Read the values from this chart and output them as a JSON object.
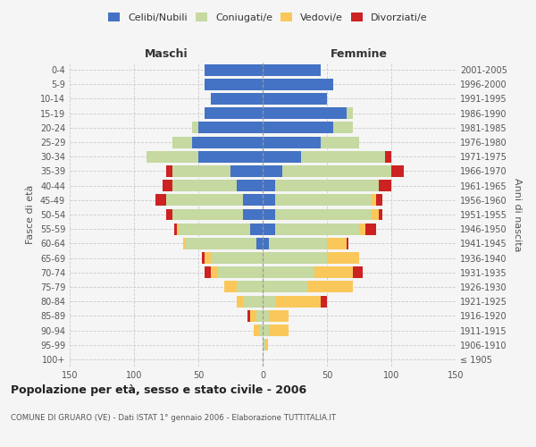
{
  "age_groups": [
    "100+",
    "95-99",
    "90-94",
    "85-89",
    "80-84",
    "75-79",
    "70-74",
    "65-69",
    "60-64",
    "55-59",
    "50-54",
    "45-49",
    "40-44",
    "35-39",
    "30-34",
    "25-29",
    "20-24",
    "15-19",
    "10-14",
    "5-9",
    "0-4"
  ],
  "birth_years": [
    "≤ 1905",
    "1906-1910",
    "1911-1915",
    "1916-1920",
    "1921-1925",
    "1926-1930",
    "1931-1935",
    "1936-1940",
    "1941-1945",
    "1946-1950",
    "1951-1955",
    "1956-1960",
    "1961-1965",
    "1966-1970",
    "1971-1975",
    "1976-1980",
    "1981-1985",
    "1986-1990",
    "1991-1995",
    "1996-2000",
    "2001-2005"
  ],
  "males": {
    "celibi": [
      0,
      0,
      0,
      0,
      0,
      0,
      0,
      0,
      5,
      10,
      15,
      15,
      20,
      25,
      50,
      55,
      50,
      45,
      40,
      45,
      45
    ],
    "coniugati": [
      0,
      0,
      2,
      5,
      15,
      20,
      35,
      40,
      55,
      55,
      55,
      60,
      50,
      45,
      40,
      15,
      5,
      0,
      0,
      0,
      0
    ],
    "vedovi": [
      0,
      0,
      5,
      5,
      5,
      10,
      5,
      5,
      2,
      2,
      0,
      0,
      0,
      0,
      0,
      0,
      0,
      0,
      0,
      0,
      0
    ],
    "divorziati": [
      0,
      0,
      0,
      2,
      0,
      0,
      5,
      2,
      0,
      2,
      5,
      8,
      8,
      5,
      0,
      0,
      0,
      0,
      0,
      0,
      0
    ]
  },
  "females": {
    "nubili": [
      0,
      0,
      0,
      0,
      0,
      0,
      0,
      0,
      5,
      10,
      10,
      10,
      10,
      15,
      30,
      45,
      55,
      65,
      50,
      55,
      45
    ],
    "coniugate": [
      0,
      2,
      5,
      5,
      10,
      35,
      40,
      50,
      45,
      65,
      75,
      75,
      80,
      85,
      65,
      30,
      15,
      5,
      0,
      0,
      0
    ],
    "vedove": [
      0,
      2,
      15,
      15,
      35,
      35,
      30,
      25,
      15,
      5,
      5,
      3,
      0,
      0,
      0,
      0,
      0,
      0,
      0,
      0,
      0
    ],
    "divorziate": [
      0,
      0,
      0,
      0,
      5,
      0,
      8,
      0,
      2,
      8,
      3,
      5,
      10,
      10,
      5,
      0,
      0,
      0,
      0,
      0,
      0
    ]
  },
  "color_celibi": "#4472c4",
  "color_coniugati": "#c5d9a0",
  "color_vedovi": "#fac85a",
  "color_divorziati": "#cc2222",
  "xlim": 150,
  "title": "Popolazione per età, sesso e stato civile - 2006",
  "subtitle": "COMUNE DI GRUARO (VE) - Dati ISTAT 1° gennaio 2006 - Elaborazione TUTTITALIA.IT",
  "ylabel_left": "Fasce di età",
  "ylabel_right": "Anni di nascita",
  "xlabel_maschi": "Maschi",
  "xlabel_femmine": "Femmine",
  "bg_color": "#f5f5f5",
  "bar_height": 0.8
}
